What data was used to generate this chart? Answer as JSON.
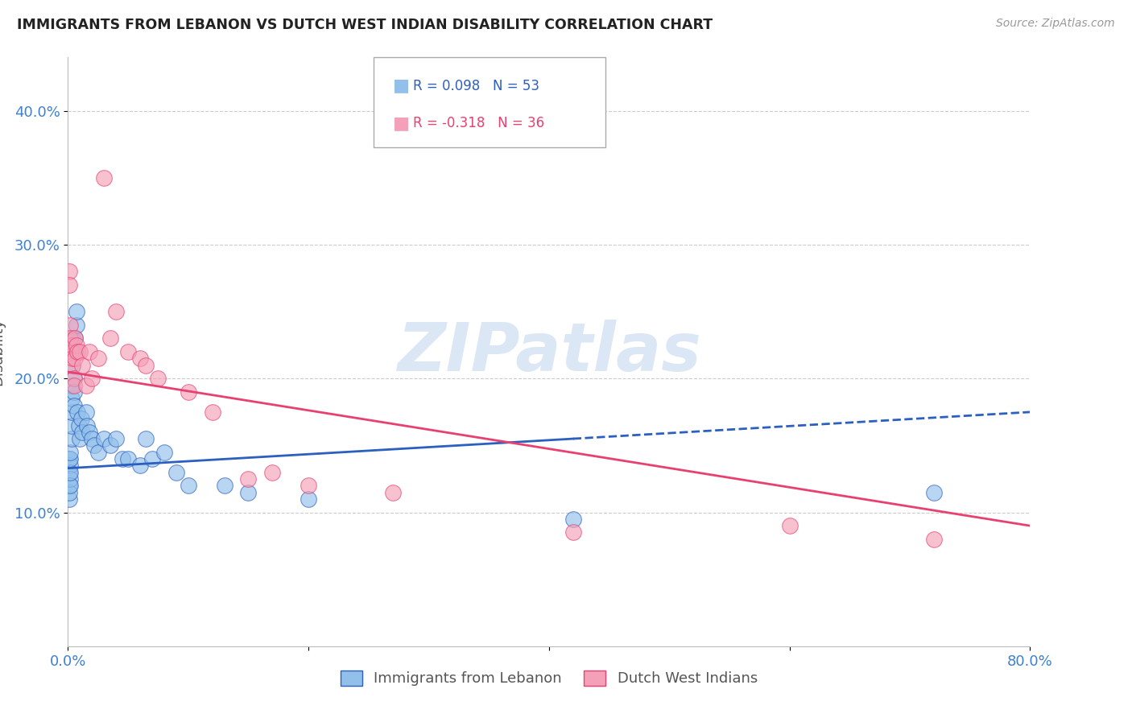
{
  "title": "IMMIGRANTS FROM LEBANON VS DUTCH WEST INDIAN DISABILITY CORRELATION CHART",
  "source": "Source: ZipAtlas.com",
  "ylabel": "Disability",
  "xlim": [
    0.0,
    0.8
  ],
  "ylim": [
    0.0,
    0.44
  ],
  "blue_label": "Immigrants from Lebanon",
  "pink_label": "Dutch West Indians",
  "blue_R": 0.098,
  "blue_N": 53,
  "pink_R": -0.318,
  "pink_N": 36,
  "blue_color": "#92C0EA",
  "pink_color": "#F4A0B8",
  "blue_line_color": "#2B5FC0",
  "pink_line_color": "#E84070",
  "watermark_color": "#C5D8F0",
  "background_color": "#FFFFFF",
  "grid_color": "#CCCCCC",
  "blue_scatter_x": [
    0.001,
    0.001,
    0.001,
    0.001,
    0.001,
    0.002,
    0.002,
    0.002,
    0.002,
    0.002,
    0.002,
    0.003,
    0.003,
    0.003,
    0.003,
    0.003,
    0.004,
    0.004,
    0.004,
    0.005,
    0.005,
    0.005,
    0.006,
    0.006,
    0.007,
    0.007,
    0.008,
    0.009,
    0.01,
    0.011,
    0.012,
    0.015,
    0.016,
    0.018,
    0.02,
    0.022,
    0.025,
    0.03,
    0.035,
    0.04,
    0.045,
    0.05,
    0.06,
    0.065,
    0.07,
    0.08,
    0.09,
    0.1,
    0.13,
    0.15,
    0.2,
    0.42,
    0.72
  ],
  "blue_scatter_y": [
    0.13,
    0.14,
    0.12,
    0.11,
    0.115,
    0.135,
    0.125,
    0.12,
    0.13,
    0.14,
    0.145,
    0.155,
    0.165,
    0.175,
    0.185,
    0.195,
    0.21,
    0.22,
    0.23,
    0.2,
    0.19,
    0.18,
    0.23,
    0.22,
    0.24,
    0.25,
    0.175,
    0.165,
    0.155,
    0.17,
    0.16,
    0.175,
    0.165,
    0.16,
    0.155,
    0.15,
    0.145,
    0.155,
    0.15,
    0.155,
    0.14,
    0.14,
    0.135,
    0.155,
    0.14,
    0.145,
    0.13,
    0.12,
    0.12,
    0.115,
    0.11,
    0.095,
    0.115
  ],
  "pink_scatter_x": [
    0.001,
    0.001,
    0.002,
    0.002,
    0.003,
    0.003,
    0.004,
    0.004,
    0.005,
    0.005,
    0.006,
    0.006,
    0.007,
    0.008,
    0.01,
    0.012,
    0.015,
    0.018,
    0.02,
    0.025,
    0.03,
    0.035,
    0.04,
    0.05,
    0.06,
    0.065,
    0.075,
    0.1,
    0.12,
    0.15,
    0.17,
    0.2,
    0.27,
    0.42,
    0.6,
    0.72
  ],
  "pink_scatter_y": [
    0.28,
    0.27,
    0.24,
    0.23,
    0.22,
    0.225,
    0.21,
    0.215,
    0.2,
    0.195,
    0.23,
    0.215,
    0.225,
    0.22,
    0.22,
    0.21,
    0.195,
    0.22,
    0.2,
    0.215,
    0.35,
    0.23,
    0.25,
    0.22,
    0.215,
    0.21,
    0.2,
    0.19,
    0.175,
    0.125,
    0.13,
    0.12,
    0.115,
    0.085,
    0.09,
    0.08
  ]
}
